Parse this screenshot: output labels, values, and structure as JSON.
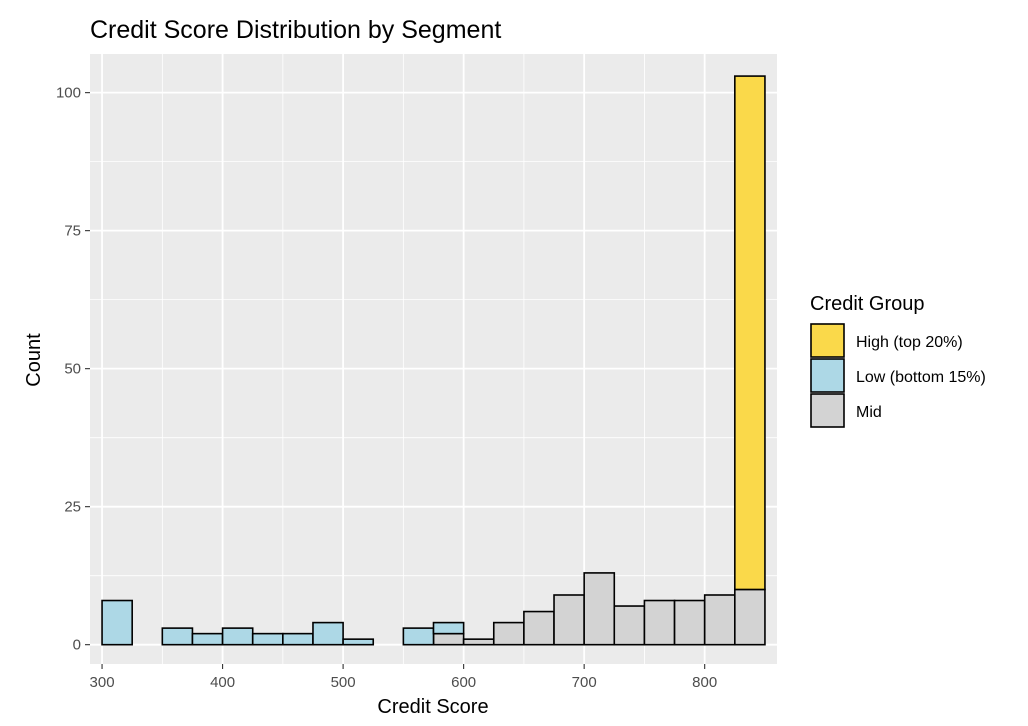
{
  "chart_data": {
    "type": "bar",
    "title": "Credit Score Distribution by Segment",
    "xlabel": "Credit Score",
    "ylabel": "Count",
    "xlim": [
      290,
      860
    ],
    "ylim": [
      -3.5,
      107
    ],
    "x_ticks": [
      300,
      400,
      500,
      600,
      700,
      800
    ],
    "y_ticks": [
      0,
      25,
      50,
      75,
      100
    ],
    "bin_width": 25,
    "stacked": true,
    "grid": true,
    "legend": {
      "title": "Credit Group",
      "position": "right"
    },
    "series": [
      {
        "name": "High (top 20%)",
        "color": "#FAD94A",
        "bins": [
          {
            "x0": 825,
            "x1": 850,
            "value": 93
          }
        ]
      },
      {
        "name": "Low (bottom 15%)",
        "color": "#ADD8E6",
        "bins": [
          {
            "x0": 300,
            "x1": 325,
            "value": 8
          },
          {
            "x0": 325,
            "x1": 350,
            "value": 0
          },
          {
            "x0": 350,
            "x1": 375,
            "value": 3
          },
          {
            "x0": 375,
            "x1": 400,
            "value": 2
          },
          {
            "x0": 400,
            "x1": 425,
            "value": 3
          },
          {
            "x0": 425,
            "x1": 450,
            "value": 2
          },
          {
            "x0": 450,
            "x1": 475,
            "value": 2
          },
          {
            "x0": 475,
            "x1": 500,
            "value": 4
          },
          {
            "x0": 500,
            "x1": 525,
            "value": 1
          },
          {
            "x0": 525,
            "x1": 550,
            "value": 0
          },
          {
            "x0": 550,
            "x1": 575,
            "value": 3
          },
          {
            "x0": 575,
            "x1": 600,
            "value": 2
          }
        ]
      },
      {
        "name": "Mid",
        "color": "#D3D3D3",
        "bins": [
          {
            "x0": 575,
            "x1": 600,
            "value": 2
          },
          {
            "x0": 600,
            "x1": 625,
            "value": 1
          },
          {
            "x0": 625,
            "x1": 650,
            "value": 4
          },
          {
            "x0": 650,
            "x1": 675,
            "value": 6
          },
          {
            "x0": 675,
            "x1": 700,
            "value": 9
          },
          {
            "x0": 700,
            "x1": 725,
            "value": 13
          },
          {
            "x0": 725,
            "x1": 750,
            "value": 7
          },
          {
            "x0": 750,
            "x1": 775,
            "value": 8
          },
          {
            "x0": 775,
            "x1": 800,
            "value": 8
          },
          {
            "x0": 800,
            "x1": 825,
            "value": 9
          },
          {
            "x0": 825,
            "x1": 850,
            "value": 10
          }
        ]
      }
    ],
    "colors": {
      "panel_background": "#EBEBEB",
      "grid": "#FFFFFF",
      "bar_outline": "#000000"
    }
  }
}
